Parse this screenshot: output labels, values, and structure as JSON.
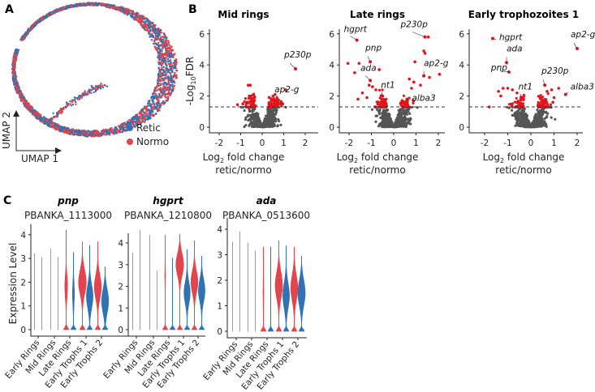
{
  "panel_labels": {
    "a": "A",
    "b": "B",
    "c": "C"
  },
  "chart_data": [
    {
      "type": "scatter",
      "id": "umap",
      "xlabel": "UMAP 1",
      "ylabel": "UMAP 2",
      "legend": [
        {
          "name": "Retic",
          "color": "#2f73b5"
        },
        {
          "name": "Normo",
          "color": "#e2454d"
        }
      ],
      "legend_position": "bottom-right"
    },
    {
      "type": "scatter",
      "id": "volcano",
      "ylabel_parts": [
        "-Log",
        "10",
        "FDR"
      ],
      "xlabel_parts": [
        "Log",
        "2",
        " fold change"
      ],
      "xlabel_line2": "retic/normo",
      "xticks": [
        "-2",
        "-1",
        "0",
        "1",
        "2"
      ],
      "yticks": [
        "0",
        "2",
        "4",
        "6"
      ],
      "threshold": 1.3,
      "colors": {
        "significant": "#e3141b",
        "ns": "#555555"
      },
      "panels": [
        {
          "title": "Mid rings",
          "labeled": [
            {
              "gene": "p230p",
              "x": 1.55,
              "y": 3.75
            },
            {
              "gene": "ap2-g",
              "x": 0.95,
              "y": 1.5
            }
          ],
          "significant": [
            [
              -0.65,
              2.7
            ],
            [
              -0.55,
              2.7
            ],
            [
              -0.6,
              2.0
            ],
            [
              -0.55,
              1.9
            ],
            [
              -0.5,
              1.8
            ],
            [
              -1.15,
              1.45
            ],
            [
              -0.9,
              1.5
            ],
            [
              -0.7,
              1.6
            ],
            [
              0.6,
              2.1
            ],
            [
              0.5,
              2.0
            ],
            [
              1.1,
              2.4
            ],
            [
              0.75,
              1.6
            ],
            [
              0.4,
              1.5
            ],
            [
              0.85,
              1.5
            ],
            [
              0.55,
              1.7
            ]
          ]
        },
        {
          "title": "Late rings",
          "labeled": [
            {
              "gene": "hgprt",
              "x": -1.65,
              "y": 5.6
            },
            {
              "gene": "pnp",
              "x": -1.05,
              "y": 4.2
            },
            {
              "gene": "ada",
              "x": -1.05,
              "y": 3.0
            },
            {
              "gene": "nt1",
              "x": -0.5,
              "y": 2.0
            },
            {
              "gene": "p230p",
              "x": 1.4,
              "y": 5.8
            },
            {
              "gene": "ap2-g",
              "x": 1.35,
              "y": 3.3
            },
            {
              "gene": "alba3",
              "x": 0.6,
              "y": 1.8
            }
          ],
          "significant": [
            [
              1.55,
              5.8
            ],
            [
              -2.05,
              4.1
            ],
            [
              -1.55,
              4.1
            ],
            [
              -1.75,
              3.5
            ],
            [
              -0.65,
              3.7
            ],
            [
              1.35,
              4.9
            ],
            [
              1.4,
              4.75
            ],
            [
              0.95,
              4.2
            ],
            [
              2.05,
              3.4
            ],
            [
              1.6,
              3.2
            ],
            [
              -1.1,
              2.7
            ],
            [
              -0.95,
              2.6
            ],
            [
              -1.4,
              2.2
            ],
            [
              -0.8,
              2.4
            ],
            [
              0.7,
              3.1
            ],
            [
              0.9,
              2.9
            ],
            [
              1.2,
              2.7
            ],
            [
              -1.6,
              1.8
            ],
            [
              -1.2,
              1.9
            ],
            [
              0.8,
              2.5
            ]
          ]
        },
        {
          "title": "Early trophozoites 1",
          "labeled": [
            {
              "gene": "hgprt",
              "x": -1.65,
              "y": 5.7
            },
            {
              "gene": "ap2-g",
              "x": 2.0,
              "y": 5.05
            },
            {
              "gene": "ada",
              "x": -1.05,
              "y": 4.15
            },
            {
              "gene": "pnp",
              "x": -0.95,
              "y": 3.55
            },
            {
              "gene": "nt1",
              "x": -0.4,
              "y": 1.9
            },
            {
              "gene": "p230p",
              "x": 0.6,
              "y": 2.7
            },
            {
              "gene": "alba3",
              "x": 1.5,
              "y": 2.1
            }
          ],
          "significant": [
            [
              -1.8,
              1.3
            ],
            [
              -1.4,
              2.3
            ],
            [
              -1.2,
              2.5
            ],
            [
              -1.0,
              2.5
            ],
            [
              -0.8,
              2.4
            ],
            [
              -0.6,
              2.2
            ],
            [
              0.9,
              2.4
            ],
            [
              1.2,
              2.5
            ],
            [
              0.95,
              1.6
            ],
            [
              1.0,
              1.9
            ],
            [
              -1.3,
              2.0
            ],
            [
              0.7,
              2.3
            ]
          ]
        }
      ]
    },
    {
      "type": "violin",
      "id": "expression",
      "ylabel": "Expression Level",
      "categories": [
        "Early Rings",
        "Mid Rings",
        "Late Rings",
        "Early Trophs 1",
        "Early Trophs 2"
      ],
      "group_colors": {
        "normo": "#e2454d",
        "retic": "#2f73b5",
        "empty": "#999999"
      },
      "panels": [
        {
          "gene": "pnp",
          "id": "PBANKA_1113000",
          "yticks": [
            "0",
            "1",
            "2",
            "3",
            "4"
          ],
          "violins": [
            {
              "normo": {
                "max": 3.2,
                "mode": 0,
                "w": 0
              },
              "retic": {
                "max": 3.05,
                "mode": 0,
                "w": 0
              }
            },
            {
              "normo": {
                "max": 3.4,
                "mode": 0,
                "w": 0
              },
              "retic": {
                "max": 3.05,
                "mode": 0,
                "w": 0
              }
            },
            {
              "normo": {
                "max": 4.2,
                "mode": 1.8,
                "w": 0.35
              },
              "retic": {
                "max": 3.25,
                "mode": 1.5,
                "w": 0.25
              }
            },
            {
              "normo": {
                "max": 3.7,
                "mode": 2.0,
                "w": 1.0
              },
              "retic": {
                "max": 3.55,
                "mode": 1.4,
                "w": 0.85
              }
            },
            {
              "normo": {
                "max": 3.7,
                "mode": 1.8,
                "w": 0.9
              },
              "retic": {
                "max": 2.65,
                "mode": 1.2,
                "w": 0.9
              }
            }
          ]
        },
        {
          "gene": "hgprt",
          "id": "PBANKA_1210800",
          "yticks": [
            "0",
            "1",
            "2",
            "3",
            "4"
          ],
          "violins": [
            {
              "normo": {
                "max": 3.55,
                "mode": 0,
                "w": 0
              },
              "retic": {
                "max": 4.6,
                "mode": 0,
                "w": 0
              }
            },
            {
              "normo": {
                "max": 4.35,
                "mode": 0,
                "w": 0
              },
              "retic": {
                "max": 2.7,
                "mode": 0,
                "w": 0
              }
            },
            {
              "normo": {
                "max": 4.35,
                "mode": 2.5,
                "w": 0.1
              },
              "retic": {
                "max": 3.3,
                "mode": 2.0,
                "w": 0.05
              }
            },
            {
              "normo": {
                "max": 4.4,
                "mode": 3.0,
                "w": 1.0
              },
              "retic": {
                "max": 3.7,
                "mode": 1.7,
                "w": 0.8
              }
            },
            {
              "normo": {
                "max": 4.1,
                "mode": 2.2,
                "w": 0.9
              },
              "retic": {
                "max": 3.4,
                "mode": 1.8,
                "w": 0.85
              }
            }
          ]
        },
        {
          "gene": "ada",
          "id": "PBANKA_0513600",
          "yticks": [
            "0",
            "1",
            "2",
            "3",
            "4"
          ],
          "violins": [
            {
              "normo": {
                "max": 3.5,
                "mode": 0,
                "w": 0
              },
              "retic": {
                "max": 3.9,
                "mode": 0,
                "w": 0
              }
            },
            {
              "normo": {
                "max": 3.45,
                "mode": 0,
                "w": 0
              },
              "retic": {
                "max": 3.15,
                "mode": 0,
                "w": 0
              }
            },
            {
              "normo": {
                "max": 3.3,
                "mode": 1.5,
                "w": 0.1
              },
              "retic": {
                "max": 3.3,
                "mode": 1.5,
                "w": 0.03
              }
            },
            {
              "normo": {
                "max": 3.55,
                "mode": 1.8,
                "w": 0.95
              },
              "retic": {
                "max": 3.35,
                "mode": 1.4,
                "w": 0.85
              }
            },
            {
              "normo": {
                "max": 3.3,
                "mode": 1.7,
                "w": 0.9
              },
              "retic": {
                "max": 2.95,
                "mode": 1.5,
                "w": 0.95
              }
            }
          ]
        }
      ]
    }
  ]
}
